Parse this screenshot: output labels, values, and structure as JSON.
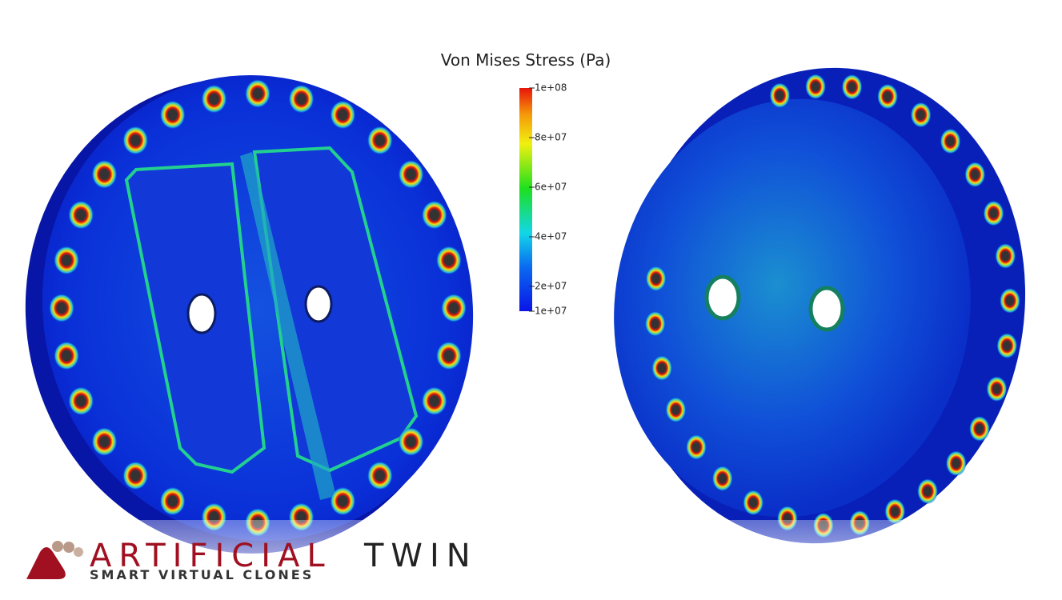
{
  "colorbar": {
    "title": "Von Mises Stress (Pa)",
    "range": [
      10000000,
      100000000
    ],
    "ticks": [
      {
        "value": 100000000,
        "label": "1e+08"
      },
      {
        "value": 80000000,
        "label": "8e+07"
      },
      {
        "value": 60000000,
        "label": "6e+07"
      },
      {
        "value": 40000000,
        "label": "4e+07"
      },
      {
        "value": 20000000,
        "label": "2e+07"
      },
      {
        "value": 10000000,
        "label": "1e+07"
      }
    ]
  },
  "logo": {
    "name_first": "ARTIFICIAL",
    "name_second": "TWIN",
    "tagline": "SMART VIRTUAL CLONES"
  }
}
